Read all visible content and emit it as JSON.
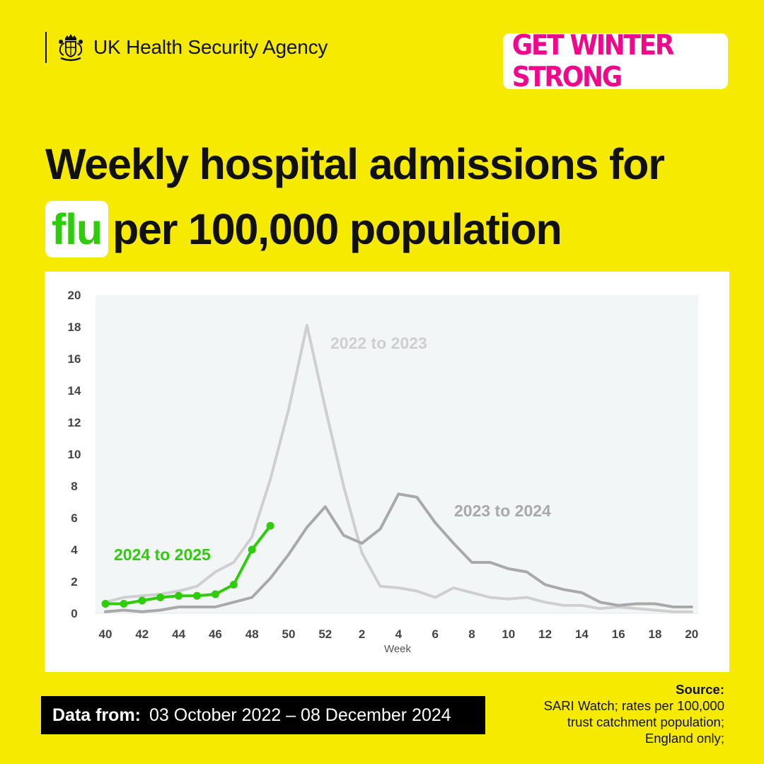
{
  "header": {
    "org_name": "UK Health Security Agency",
    "campaign": "GET WINTER STRONG"
  },
  "headline": {
    "line1": "Weekly hospital admissions for",
    "highlight": "flu",
    "line2_rest": "per 100,000 population"
  },
  "colors": {
    "background": "#f6ea00",
    "series_2022_23": "#cfcfcf",
    "series_2023_24": "#a9a9a9",
    "series_2024_25": "#2ecc0a",
    "campaign": "#f0078c",
    "plot_area": "#f3f6f7"
  },
  "chart_data": {
    "type": "line",
    "x_label": "Week",
    "y_ticks": [
      0,
      2,
      4,
      6,
      8,
      10,
      12,
      14,
      16,
      18,
      20
    ],
    "ylim": [
      0,
      20
    ],
    "x_ticks": [
      "40",
      "42",
      "44",
      "46",
      "48",
      "50",
      "52",
      "2",
      "4",
      "6",
      "8",
      "10",
      "12",
      "14",
      "16",
      "18",
      "20"
    ],
    "weeks": [
      40,
      41,
      42,
      43,
      44,
      45,
      46,
      47,
      48,
      49,
      50,
      51,
      52,
      1,
      2,
      3,
      4,
      5,
      6,
      7,
      8,
      9,
      10,
      11,
      12,
      13,
      14,
      15,
      16,
      17,
      18,
      19,
      20
    ],
    "grid": false,
    "series": [
      {
        "name": "2022 to 2023",
        "values": [
          0.7,
          1.0,
          1.1,
          1.2,
          1.4,
          1.7,
          2.6,
          3.2,
          4.8,
          8.4,
          12.8,
          18.1,
          12.9,
          8.0,
          3.8,
          1.7,
          1.6,
          1.4,
          1.0,
          1.6,
          1.3,
          1.0,
          0.9,
          1.0,
          0.7,
          0.5,
          0.5,
          0.3,
          0.4,
          0.3,
          0.2,
          0.1,
          0.1
        ]
      },
      {
        "name": "2023 to 2024",
        "values": [
          0.1,
          0.2,
          0.1,
          0.2,
          0.4,
          0.4,
          0.4,
          0.7,
          1.0,
          2.2,
          3.7,
          5.4,
          6.7,
          4.9,
          4.4,
          5.3,
          7.5,
          7.3,
          5.7,
          4.4,
          3.2,
          3.2,
          2.8,
          2.6,
          1.8,
          1.5,
          1.3,
          0.7,
          0.5,
          0.6,
          0.6,
          0.4,
          0.4
        ]
      },
      {
        "name": "2024 to 2025",
        "values": [
          0.6,
          0.6,
          0.8,
          1.0,
          1.1,
          1.1,
          1.2,
          1.8,
          4.0,
          5.5
        ]
      }
    ]
  },
  "footer": {
    "dates_label": "Data from:",
    "dates_value": "03 October 2022 – 08 December 2024",
    "source_title": "Source:",
    "source_line1": "SARI Watch; rates per 100,000",
    "source_line2": "trust catchment population;",
    "source_line3": "England only;"
  }
}
